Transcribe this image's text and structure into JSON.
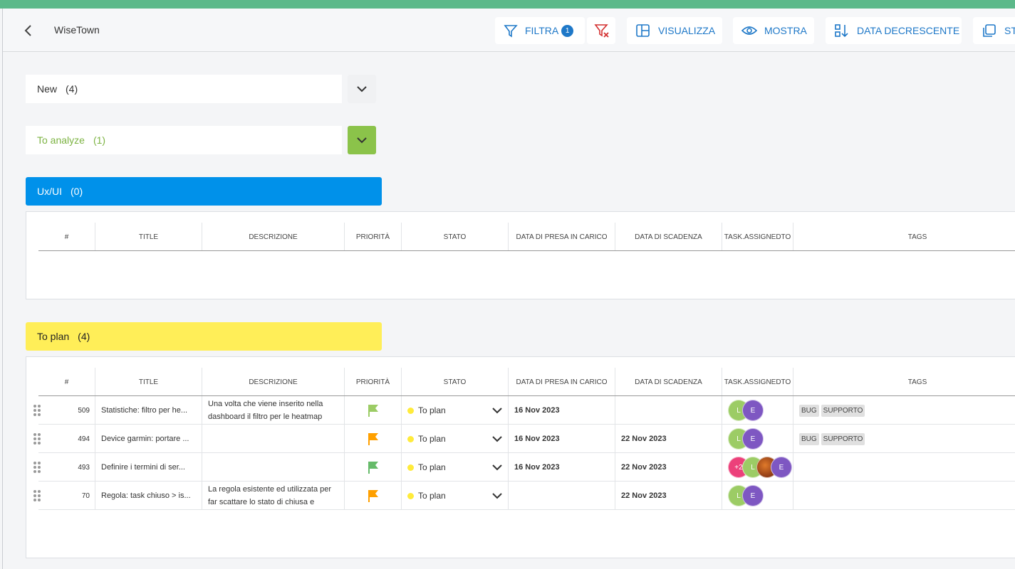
{
  "header": {
    "title": "WiseTown",
    "buttons": [
      {
        "label": "FILTRA",
        "badge": "1"
      },
      {
        "label": "VISUALIZZA"
      },
      {
        "label": "MOSTRA"
      },
      {
        "label": "DATA DECRESCENTE"
      },
      {
        "label": "ST"
      }
    ]
  },
  "groups": [
    {
      "name": "New",
      "count": "(4)"
    },
    {
      "name": "To analyze",
      "count": "(1)"
    },
    {
      "name": "Ux/UI",
      "count": "(0)"
    },
    {
      "name": "To plan",
      "count": "(4)"
    }
  ],
  "columns": [
    "#",
    "TITLE",
    "DESCRIZIONE",
    "PRIORITÀ",
    "STATO",
    "DATA DI PRESA IN CARICO",
    "DATA DI SCADENZA",
    "TASK.ASSIGNEDTO",
    "TAGS"
  ],
  "table": {
    "rows": [
      {
        "id": "509",
        "title": "Statistiche: filtro per he...",
        "description": "Una volta che viene inserito nella dashboard il filtro per le heatmap",
        "priority_color": "#9ccc65",
        "status": "To plan",
        "start": "16 Nov 2023",
        "due": null,
        "assignees": [
          {
            "initial": "L",
            "color": "#9ccc65"
          },
          {
            "initial": "E",
            "color": "#7e57c2"
          }
        ],
        "tags": [
          "BUG",
          "SUPPORTO"
        ]
      },
      {
        "id": "494",
        "title": "Device garmin: portare ...",
        "description": null,
        "priority_color": "#ffa000",
        "status": "To plan",
        "start": "16 Nov 2023",
        "due": "22 Nov 2023",
        "assignees": [
          {
            "initial": "L",
            "color": "#9ccc65"
          },
          {
            "initial": "E",
            "color": "#7e57c2"
          }
        ],
        "tags": [
          "BUG",
          "SUPPORTO"
        ]
      },
      {
        "id": "493",
        "title": "Definire i termini di ser...",
        "description": null,
        "priority_color": "#66bb6a",
        "status": "To plan",
        "start": "16 Nov 2023",
        "due": "22 Nov 2023",
        "assignees": [
          {
            "initial": "+2",
            "color": "#ec407a"
          },
          {
            "initial": "L",
            "color": "#9ccc65"
          },
          {
            "color": "#8d3a14"
          },
          {
            "initial": "E",
            "color": "#7e57c2"
          }
        ],
        "tags": []
      },
      {
        "id": "70",
        "title": "Regola: task chiuso > is...",
        "description": "La regola esistente ed utilizzata per far scattare lo stato di chiusa e",
        "priority_color": "#ffa000",
        "status": "To plan",
        "start": null,
        "due": "22 Nov 2023",
        "assignees": [
          {
            "initial": "L",
            "color": "#9ccc65"
          },
          {
            "initial": "E",
            "color": "#7e57c2"
          }
        ],
        "tags": []
      }
    ]
  }
}
